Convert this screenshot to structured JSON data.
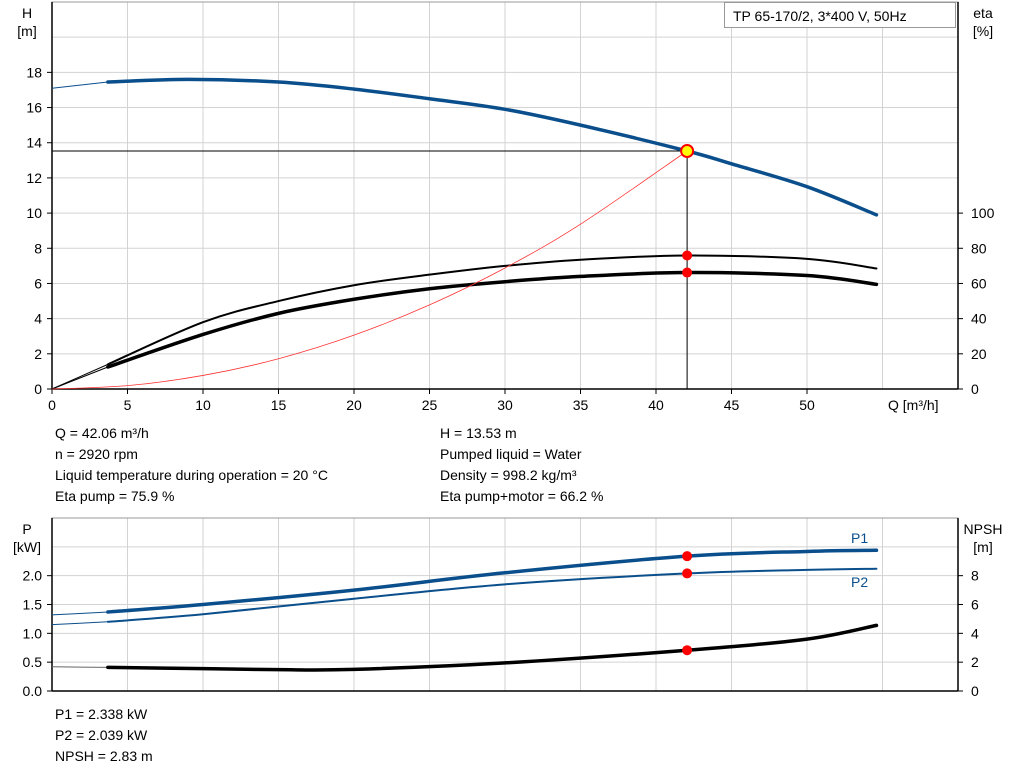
{
  "legend_text": "TP 65-170/2, 3*400 V, 50Hz",
  "colors": {
    "head": "#0a4f8c",
    "power": "#0a4f8c",
    "eta": "#000000",
    "npsh": "#000000",
    "system": "#ff3333",
    "marker": "#ff0000",
    "op_marker": "#ffff00",
    "grid": "#d3d3d3"
  },
  "chart_data": [
    {
      "type": "line",
      "title": "",
      "xlabel": "Q [m³/h]",
      "ylabel": "H\n[m]",
      "ylabel_line1": "H",
      "ylabel_line2": "[m]",
      "y2label_line1": "eta",
      "y2label_line2": "[%]",
      "xlim": [
        0,
        60
      ],
      "ylim": [
        0,
        22
      ],
      "y2lim": [
        0,
        220
      ],
      "xticks": [
        0,
        5,
        10,
        15,
        20,
        25,
        30,
        35,
        40,
        45,
        50
      ],
      "yticks": [
        0,
        2,
        4,
        6,
        8,
        10,
        12,
        14,
        16,
        18
      ],
      "y2ticks": [
        0,
        20,
        40,
        60,
        80,
        100
      ],
      "grid": true,
      "series": [
        {
          "key": "H",
          "axis": "left",
          "x": [
            0,
            3.7,
            9,
            15,
            20,
            25,
            30,
            35,
            42.06,
            45,
            50,
            54.6
          ],
          "y": [
            17.1,
            17.45,
            17.6,
            17.45,
            17.05,
            16.5,
            15.9,
            15.0,
            13.53,
            12.8,
            11.5,
            9.9
          ]
        },
        {
          "key": "eta_pump",
          "axis": "right",
          "x": [
            0,
            3.7,
            10,
            15,
            20,
            25,
            30,
            35,
            42.06,
            50,
            54.6
          ],
          "y": [
            0,
            14,
            38,
            50,
            59,
            65,
            70,
            73.5,
            75.9,
            74,
            68.5
          ]
        },
        {
          "key": "eta_total",
          "axis": "right",
          "x": [
            0,
            3.7,
            10,
            15,
            20,
            25,
            30,
            35,
            42.06,
            50,
            54.6
          ],
          "y": [
            0,
            12.5,
            31,
            43,
            51,
            57,
            61,
            64,
            66.2,
            64.5,
            59.5
          ]
        },
        {
          "key": "system",
          "axis": "left",
          "x": [
            0,
            5,
            10,
            15,
            20,
            25,
            30,
            35,
            42.06
          ],
          "y": [
            0,
            0.19,
            0.77,
            1.72,
            3.06,
            4.78,
            6.88,
            9.37,
            13.53
          ]
        }
      ],
      "operating_point": {
        "Q": 42.06,
        "H": 13.53,
        "eta_pump": 75.9,
        "eta_total": 66.2
      }
    },
    {
      "type": "line",
      "title": "",
      "ylabel_line1": "P",
      "ylabel_line2": "[kW]",
      "y2label_line1": "NPSH",
      "y2label_line2": "[m]",
      "xlim": [
        0,
        60
      ],
      "ylim": [
        0,
        3.0
      ],
      "y2lim": [
        0,
        12
      ],
      "yticks": [
        "0.0",
        "0.5",
        "1.0",
        "1.5",
        "2.0"
      ],
      "y2ticks": [
        0,
        2,
        4,
        6,
        8
      ],
      "grid": true,
      "series": [
        {
          "key": "P1",
          "name": "P1",
          "axis": "left",
          "x": [
            0,
            3.7,
            10,
            20,
            30,
            42.06,
            50,
            54.6
          ],
          "y": [
            1.32,
            1.37,
            1.5,
            1.75,
            2.05,
            2.338,
            2.42,
            2.44
          ]
        },
        {
          "key": "P2",
          "name": "P2",
          "axis": "left",
          "x": [
            0,
            3.7,
            10,
            20,
            30,
            42.06,
            50,
            54.6
          ],
          "y": [
            1.15,
            1.2,
            1.33,
            1.6,
            1.85,
            2.039,
            2.1,
            2.12
          ]
        },
        {
          "key": "NPSH",
          "axis": "right",
          "x": [
            0,
            3.7,
            10,
            15,
            20,
            30,
            42.06,
            50,
            54.6
          ],
          "y": [
            1.68,
            1.64,
            1.55,
            1.48,
            1.5,
            1.95,
            2.83,
            3.6,
            4.55
          ]
        }
      ],
      "operating_point": {
        "Q": 42.06,
        "P1": 2.338,
        "P2": 2.039,
        "NPSH": 2.83
      }
    }
  ],
  "info_top_left": [
    "Q = 42.06 m³/h",
    "n = 2920 rpm",
    "Liquid temperature during operation = 20 °C",
    "Eta pump = 75.9 %"
  ],
  "info_top_right": [
    "H = 13.53 m",
    "Pumped liquid = Water",
    "Density = 998.2 kg/m³",
    "Eta pump+motor = 66.2 %"
  ],
  "info_bottom": [
    "P1 = 2.338 kW",
    "P2 = 2.039 kW",
    "NPSH = 2.83 m"
  ]
}
